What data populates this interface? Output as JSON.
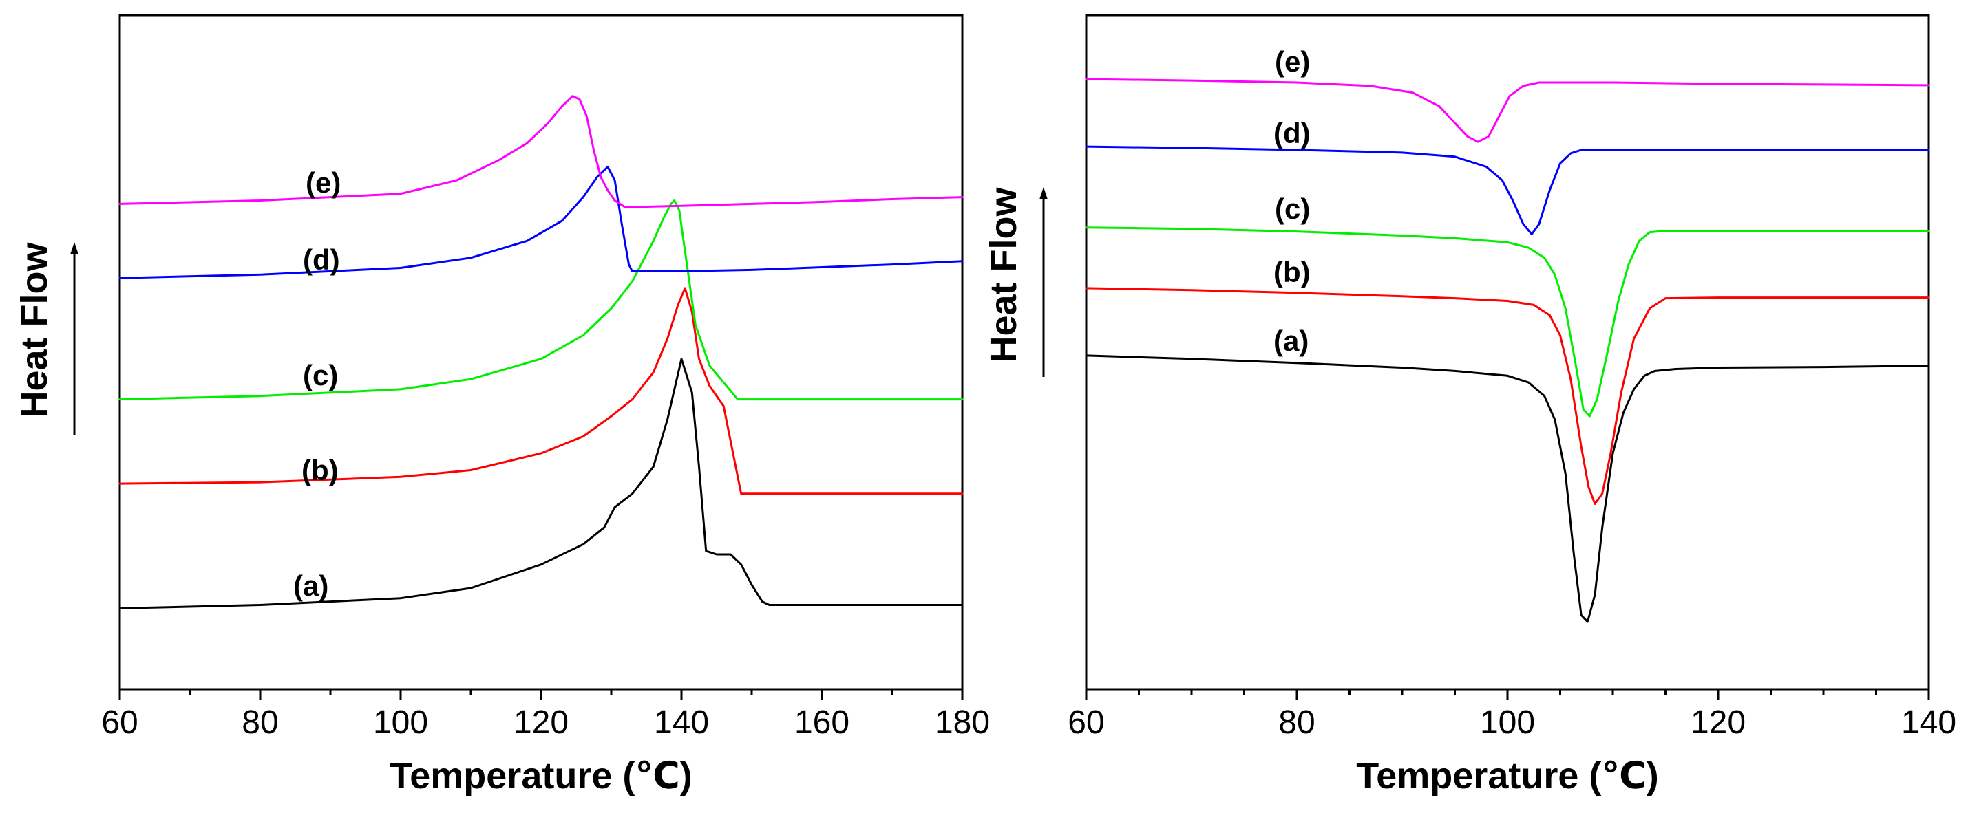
{
  "chart_data": [
    {
      "type": "line",
      "title": "",
      "xlabel": "Temperature (℃)",
      "ylabel": "Heat Flow",
      "xlim": [
        60,
        180
      ],
      "ylim": [
        0,
        100
      ],
      "xticks": [
        "60",
        "80",
        "100",
        "120",
        "140",
        "160",
        "180"
      ],
      "grid": false,
      "series": [
        {
          "name": "(a)",
          "color": "#000000",
          "x": [
            60,
            80,
            100,
            110,
            120,
            126,
            129,
            130.5,
            133,
            136,
            138,
            140,
            141.5,
            142.5,
            143.5,
            145,
            147,
            148.5,
            150,
            151.5,
            152.5,
            155,
            160,
            170,
            180
          ],
          "y": [
            12,
            12.5,
            13.5,
            15,
            18.5,
            21.5,
            24,
            27,
            29,
            33,
            40,
            49,
            44,
            33,
            20.5,
            20,
            20,
            18.5,
            15.5,
            13,
            12.5,
            12.5,
            12.5,
            12.5,
            12.5
          ]
        },
        {
          "name": "(b)",
          "color": "#ff0000",
          "x": [
            60,
            80,
            100,
            110,
            120,
            126,
            130,
            133,
            136,
            138,
            139.5,
            140.5,
            141.5,
            142.5,
            144,
            146,
            148.5,
            150,
            160,
            170,
            180
          ],
          "y": [
            30.5,
            30.7,
            31.5,
            32.5,
            35,
            37.5,
            40.5,
            43,
            47,
            52,
            57,
            59.5,
            56,
            49,
            45,
            42,
            29,
            29,
            29,
            29,
            29
          ]
        },
        {
          "name": "(c)",
          "color": "#00ee00",
          "x": [
            60,
            80,
            100,
            110,
            120,
            126,
            130,
            133,
            136,
            137.5,
            138.5,
            139,
            139.7,
            140.5,
            142,
            144,
            146,
            148,
            150,
            160,
            170,
            180
          ],
          "y": [
            43,
            43.5,
            44.5,
            46,
            49,
            52.5,
            56.5,
            60.5,
            66.5,
            70,
            72,
            72.5,
            71,
            65,
            54,
            48,
            45.5,
            43,
            43,
            43,
            43,
            43
          ]
        },
        {
          "name": "(d)",
          "color": "#0000ff",
          "x": [
            60,
            80,
            100,
            110,
            118,
            123,
            126,
            128,
            129.5,
            130.5,
            131.5,
            132.5,
            133,
            135,
            140,
            150,
            160,
            170,
            180
          ],
          "y": [
            61,
            61.5,
            62.5,
            64,
            66.5,
            69.5,
            73,
            76,
            77.5,
            75.5,
            69,
            63,
            62,
            62,
            62,
            62.2,
            62.6,
            63,
            63.5
          ]
        },
        {
          "name": "(e)",
          "color": "#ff00ff",
          "x": [
            60,
            80,
            100,
            108,
            114,
            118,
            121,
            123,
            124.5,
            125.5,
            126.5,
            127.5,
            128.5,
            129.5,
            130.5,
            132,
            140,
            150,
            160,
            170,
            180
          ],
          "y": [
            72,
            72.5,
            73.5,
            75.5,
            78.5,
            81,
            84,
            86.5,
            88,
            87.5,
            85,
            80,
            76,
            74,
            72.5,
            71.5,
            71.7,
            72,
            72.3,
            72.7,
            73
          ]
        }
      ],
      "annotations": [
        "(a)",
        "(b)",
        "(c)",
        "(d)",
        "(e)"
      ]
    },
    {
      "type": "line",
      "title": "",
      "xlabel": "Temperature (℃)",
      "ylabel": "Heat Flow",
      "xlim": [
        60,
        140
      ],
      "ylim": [
        0,
        100
      ],
      "xticks": [
        "60",
        "80",
        "100",
        "120",
        "140"
      ],
      "grid": false,
      "series": [
        {
          "name": "(a)",
          "color": "#000000",
          "x": [
            60,
            70,
            80,
            90,
            95,
            100,
            102,
            103.5,
            104.5,
            105.5,
            106.3,
            107,
            107.6,
            108.3,
            109,
            110,
            111,
            112,
            113,
            114,
            116,
            120,
            130,
            140
          ],
          "y": [
            49.5,
            49,
            48.4,
            47.7,
            47.2,
            46.5,
            45.5,
            43.5,
            40,
            32,
            20,
            11,
            10,
            14,
            24,
            35,
            41,
            44.5,
            46.5,
            47.2,
            47.5,
            47.7,
            47.8,
            48
          ]
        },
        {
          "name": "(b)",
          "color": "#ff0000",
          "x": [
            60,
            70,
            80,
            90,
            95,
            100,
            102.5,
            104,
            105,
            106,
            107,
            107.7,
            108.3,
            109,
            109.8,
            110.8,
            112,
            113.5,
            115,
            120,
            130,
            140
          ],
          "y": [
            59.5,
            59.2,
            58.8,
            58.3,
            58,
            57.6,
            57,
            55.5,
            52.5,
            46,
            36,
            30,
            27.5,
            29,
            35,
            44,
            52,
            56.5,
            58,
            58.1,
            58.1,
            58.1
          ]
        },
        {
          "name": "(c)",
          "color": "#00ee00",
          "x": [
            60,
            70,
            80,
            90,
            95,
            100,
            102,
            103.5,
            104.5,
            105.5,
            106.5,
            107.2,
            107.8,
            108.5,
            109.5,
            110.5,
            111.5,
            112.5,
            113.5,
            115,
            120,
            130,
            140
          ],
          "y": [
            68.5,
            68.3,
            67.9,
            67.3,
            66.9,
            66.3,
            65.5,
            64,
            61.5,
            56.5,
            48,
            41.5,
            40.5,
            43,
            50,
            57.5,
            63,
            66.5,
            67.8,
            68,
            68,
            68,
            68
          ]
        },
        {
          "name": "(d)",
          "color": "#0000ff",
          "x": [
            60,
            70,
            80,
            90,
            95,
            98,
            99.5,
            100.5,
            101.5,
            102.3,
            103,
            104,
            105,
            106,
            107,
            110,
            120,
            130,
            140
          ],
          "y": [
            80.5,
            80.3,
            80,
            79.6,
            79,
            77.5,
            75.5,
            72.5,
            69,
            67.5,
            69,
            74,
            78,
            79.5,
            80,
            80,
            80,
            80,
            80
          ]
        },
        {
          "name": "(e)",
          "color": "#ff00ff",
          "x": [
            60,
            70,
            80,
            87,
            91,
            93.5,
            95,
            96.2,
            97.2,
            98.2,
            99.2,
            100.2,
            101.5,
            103,
            106,
            110,
            120,
            130,
            140
          ],
          "y": [
            90.5,
            90.3,
            90,
            89.5,
            88.5,
            86.5,
            84,
            82,
            81.2,
            82,
            85,
            88,
            89.5,
            90,
            90,
            90,
            89.8,
            89.7,
            89.6
          ]
        }
      ],
      "annotations": [
        "(a)",
        "(b)",
        "(c)",
        "(d)",
        "(e)"
      ]
    }
  ]
}
